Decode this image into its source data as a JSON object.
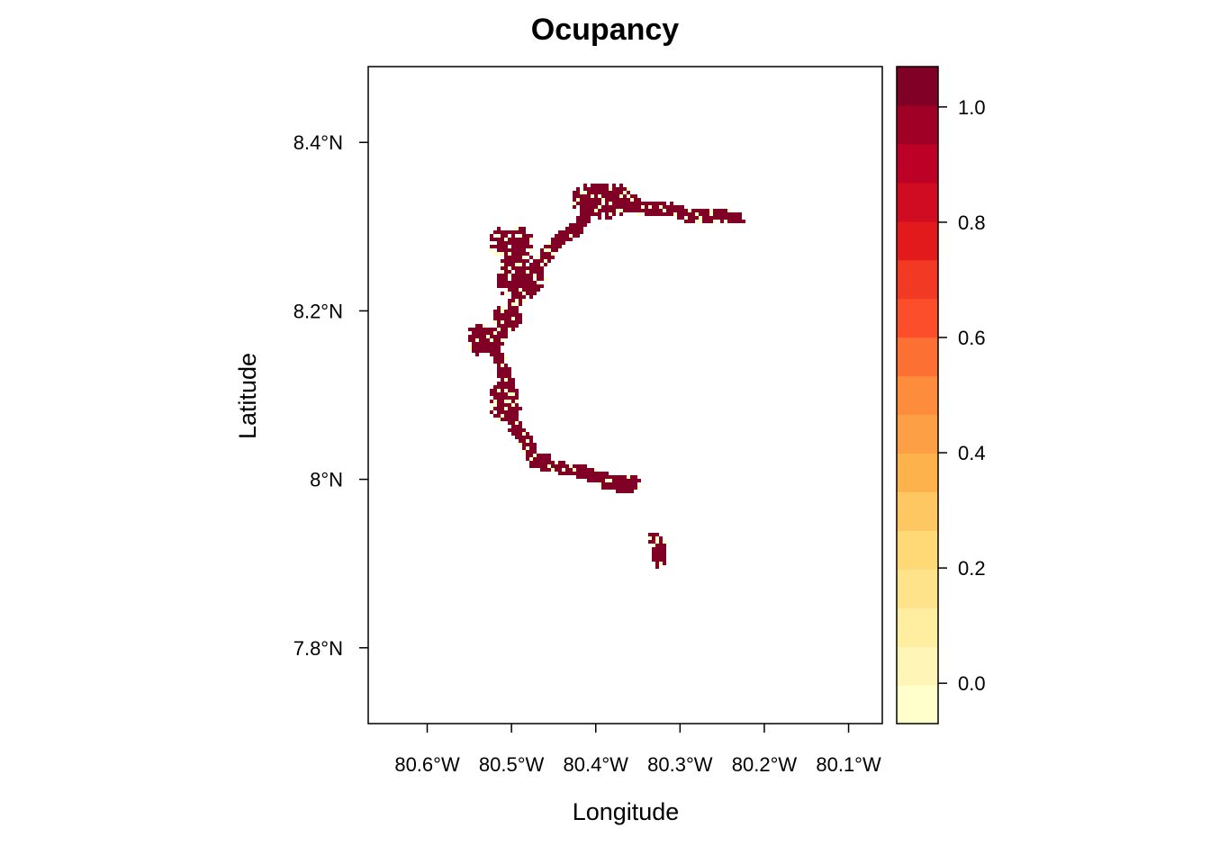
{
  "title": "Ocupancy",
  "x_axis": {
    "label": "Longitude",
    "ticks": [
      "80.6°W",
      "80.5°W",
      "80.4°W",
      "80.3°W",
      "80.2°W",
      "80.1°W"
    ],
    "values": [
      -80.6,
      -80.5,
      -80.4,
      -80.3,
      -80.2,
      -80.1
    ],
    "range": [
      -80.67,
      -80.06
    ]
  },
  "y_axis": {
    "label": "Latitude",
    "ticks": [
      "7.8°N",
      "8°N",
      "8.2°N",
      "8.4°N"
    ],
    "values": [
      7.8,
      8.0,
      8.2,
      8.4
    ],
    "range": [
      7.71,
      8.49
    ]
  },
  "colorbar": {
    "ticks": [
      "0.0",
      "0.2",
      "0.4",
      "0.6",
      "0.8",
      "1.0"
    ],
    "values": [
      0.0,
      0.2,
      0.4,
      0.6,
      0.8,
      1.0
    ],
    "range": [
      -0.07,
      1.07
    ],
    "colors": [
      "#FFFFCC",
      "#FFF5B6",
      "#FFEDA0",
      "#FEE38A",
      "#FED976",
      "#FEC762",
      "#FEB24C",
      "#FD9F44",
      "#FD8D3C",
      "#FC7034",
      "#FC4E2A",
      "#F23924",
      "#E31A1C",
      "#CF0C22",
      "#BD0026",
      "#A00026",
      "#800026"
    ]
  },
  "chart_data": {
    "type": "heatmap",
    "title": "Ocupancy",
    "xlabel": "Longitude",
    "ylabel": "Latitude",
    "xlim": [
      -80.67,
      -80.06
    ],
    "ylim": [
      7.71,
      8.49
    ],
    "value_range": [
      0,
      1
    ],
    "description_values": "Occupancy raster: the occupied cells are nearly all 1.0 (dark red) with scattered 0.0 (pale yellow) cells",
    "track": [
      [
        -80.4,
        8.345
      ],
      [
        -80.37,
        8.33
      ],
      [
        -80.33,
        8.32
      ],
      [
        -80.28,
        8.315
      ],
      [
        -80.23,
        8.312
      ],
      [
        -80.4,
        8.33
      ],
      [
        -80.42,
        8.3
      ],
      [
        -80.45,
        8.28
      ],
      [
        -80.47,
        8.25
      ],
      [
        -80.49,
        8.225
      ],
      [
        -80.5,
        8.2
      ],
      [
        -80.51,
        8.18
      ],
      [
        -80.52,
        8.16
      ],
      [
        -80.51,
        8.13
      ],
      [
        -80.5,
        8.1
      ],
      [
        -80.5,
        8.07
      ],
      [
        -80.48,
        8.04
      ],
      [
        -80.47,
        8.02
      ],
      [
        -80.45,
        8.015
      ],
      [
        -80.42,
        8.01
      ],
      [
        -80.39,
        8.0
      ],
      [
        -80.36,
        7.99
      ],
      [
        -80.33,
        7.93
      ],
      [
        -80.32,
        7.9
      ]
    ],
    "clusters": [
      {
        "lon": -80.39,
        "lat": 8.33,
        "rx": 0.04,
        "ry": 0.022
      },
      {
        "lon": -80.33,
        "lat": 8.32,
        "rx": 0.03,
        "ry": 0.01
      },
      {
        "lon": -80.27,
        "lat": 8.315,
        "rx": 0.035,
        "ry": 0.01
      },
      {
        "lon": -80.5,
        "lat": 8.282,
        "rx": 0.028,
        "ry": 0.02
      },
      {
        "lon": -80.488,
        "lat": 8.24,
        "rx": 0.03,
        "ry": 0.028
      },
      {
        "lon": -80.505,
        "lat": 8.19,
        "rx": 0.018,
        "ry": 0.016
      },
      {
        "lon": -80.535,
        "lat": 8.165,
        "rx": 0.018,
        "ry": 0.02
      },
      {
        "lon": -80.51,
        "lat": 8.095,
        "rx": 0.02,
        "ry": 0.025
      },
      {
        "lon": -80.465,
        "lat": 8.022,
        "rx": 0.015,
        "ry": 0.01
      },
      {
        "lon": -80.37,
        "lat": 7.996,
        "rx": 0.025,
        "ry": 0.012
      },
      {
        "lon": -80.325,
        "lat": 7.918,
        "rx": 0.01,
        "ry": 0.018
      }
    ]
  }
}
